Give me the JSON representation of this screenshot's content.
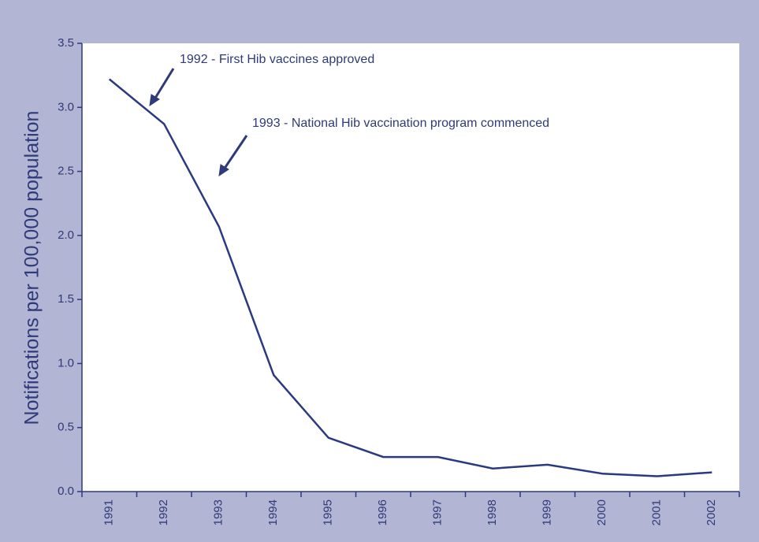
{
  "chart_data": {
    "type": "line",
    "y_label": "Notifications per 100,000 population",
    "categories": [
      "1991",
      "1992",
      "1993",
      "1994",
      "1995",
      "1996",
      "1997",
      "1998",
      "1999",
      "2000",
      "2001",
      "2002"
    ],
    "series": [
      {
        "name": "Notifications",
        "color": "#2b3a80",
        "values": [
          3.22,
          2.87,
          2.07,
          0.91,
          0.42,
          0.27,
          0.27,
          0.18,
          0.21,
          0.14,
          0.12,
          0.15
        ]
      }
    ],
    "ylim": [
      0,
      3.5
    ],
    "yticks": [
      {
        "value": 0,
        "label": "0.0"
      },
      0.5,
      {
        "value": 1,
        "label": "1.0"
      },
      1.5,
      {
        "value": 2,
        "label": "2.0"
      },
      2.5,
      {
        "value": 3,
        "label": "3.0"
      },
      3.5
    ],
    "annotations": [
      "1992 - First Hib vaccines approved",
      "1993 - National Hib vaccination program commenced"
    ]
  }
}
